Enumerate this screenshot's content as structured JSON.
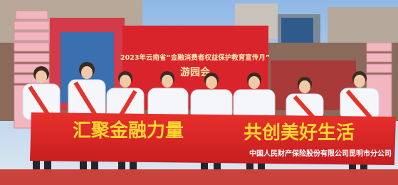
{
  "backdrop": {
    "title": "2023年云南省“金融消费者权益保护教育宣传月”",
    "subtitle": "游园会"
  },
  "banner": {
    "slogan_left": "汇聚金融力量",
    "slogan_right": "共创美好生活",
    "company": "中国人民财产保险股份有限公司昆明市分公司"
  }
}
